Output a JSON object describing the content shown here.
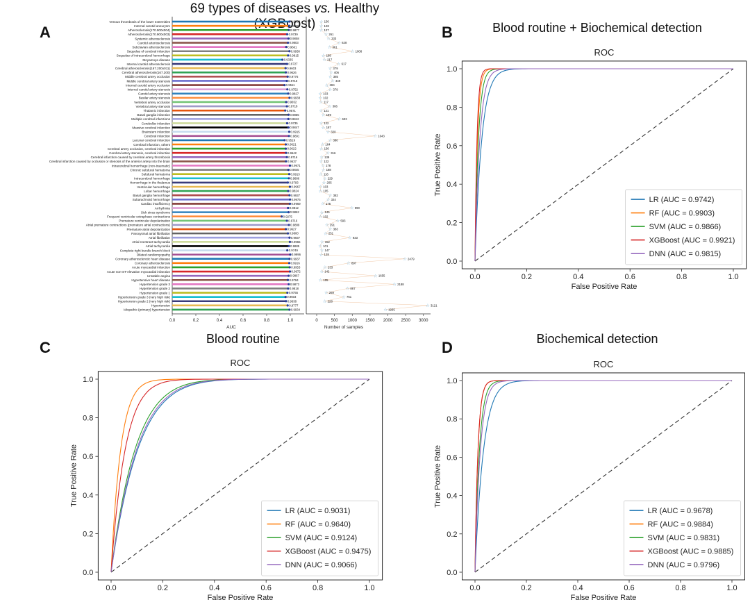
{
  "panel_a": {
    "letter": "A",
    "title_prefix": "69 types of diseases ",
    "title_vs": "vs.",
    "title_suffix": " Healthy (XGBoost)"
  },
  "panel_b": {
    "letter": "B",
    "title": "Blood routine + Biochemical detection"
  },
  "panel_c": {
    "letter": "C",
    "title": "Blood routine"
  },
  "panel_d": {
    "letter": "D",
    "title": "Biochemical detection"
  },
  "chart_data": [
    {
      "id": "A",
      "type": "bar",
      "orientation": "horizontal",
      "xlabel": "AUC",
      "xlabel2": "Number of samples",
      "xlim": [
        0,
        1.0
      ],
      "xticks": [
        "0.0",
        "0.2",
        "0.4",
        "0.6",
        "0.8",
        "1.0"
      ],
      "xlim2": [
        0,
        3200
      ],
      "xticks2": [
        "0",
        "500",
        "1000",
        "1500",
        "2000",
        "2500",
        "3000"
      ],
      "categories": [
        "Venous thrombosis of the lower extremities",
        "Internal carotid aneurysm",
        "Atherosclerosis(170.900x004)",
        "Atherosclerosis(170.900x003)",
        "Systemic atherosclerosis",
        "Carotid arteriosclerosis",
        "Subclavian atherosclerosis",
        "Sequelae of cerebral infarction",
        "Sequelae of intracerebral hemorrhage",
        "Moyamoya disease",
        "Internal carotid atherosclerosis",
        "Cerebral atherosclerosis(167.200x011)",
        "Cerebral atherosclerosis(167.200)",
        "Middle cerebral artery occlusion",
        "Middle cerebral artery stenosis",
        "Internal carotid artery occlusion",
        "Internal carotid artery stenosis",
        "Carotid artery stenosis",
        "Basilar artery stenosis",
        "Vertebral artery occlusion",
        "Vertebral artery stenosis",
        "Thalamic infarction",
        "Basal ganglia infarction",
        "Multiple cerebral infarctions",
        "Cerebellar infarction",
        "Massive cerebral infarction",
        "Brainstem infarction",
        "Cerebral infarction",
        "Lacunar cerebral infarction",
        "Cerebral infarction, others",
        "Cerebral artery occlusion, cerebral infarction",
        "Cerebral artery stenosis, cerebral infarction",
        "Cerebral infarction caused by cerebral artery thrombosis",
        "Cerebral infarction caused by occlusion or stenosis of the anterior artery into the brain",
        "Intracerebral hemorrhage (non-traumatic)",
        "Chronic subdural hematoma",
        "Subdural hematoma",
        "Intracerebral hemorrhage",
        "Hemorrhage in the thalamus",
        "Ventricular hemorrhage",
        "Lobar hemorrhage",
        "Basal ganglia hemorrhage",
        "Subarachnoid hemorrhage",
        "Cardiac insufficiency",
        "Arrhythmia",
        "Sick sinus syndrome",
        "Frequent ventricular extraphase contractions",
        "Premature ventricular depolarization",
        "Atrial premature contractions (premature atrial contractions)",
        "Premature atrial depolarization",
        "Paroxysmal atrial fibrillation",
        "Atrial fibrillation",
        "Atrial reentrant tachycardia",
        "Atrial tachycardia",
        "Complete right bundle branch block",
        "Dilated cardiomyopathy",
        "Coronary atherosclerotic heart disease",
        "Coronary atherosclerosis",
        "Acute myocardial infarction",
        "Acute non-ST-elevation myocardial infarction",
        "Unstable angina",
        "Hypertensive heart disease",
        "Hypertension grade 3",
        "Hypertension grade 2",
        "Hypertension grade 1",
        "Hypertension grade 3 (very high risk)",
        "Hypertension grade 2 (very high risk)",
        "Hypertension",
        "Idiopathic (primary) hypertension"
      ],
      "auc_labels": [
        "0.9939",
        "0.9905",
        "0.9877",
        "0.9739",
        "0.9858",
        "0.9803",
        "0.9661",
        "0.9930",
        "0.9815",
        "0.9335",
        "0.9727",
        "0.9603",
        "0.9626",
        "0.9776",
        "0.9716",
        "0.9511",
        "0.9752",
        "0.9827",
        "0.9938",
        "0.9652",
        "0.9718",
        "0.9571",
        "0.9855",
        "0.9842",
        "0.9735",
        "0.9847",
        "0.9915",
        "0.9891",
        "0.9519",
        "0.9621",
        "0.9622",
        "0.9642",
        "0.9716",
        "0.9637",
        "0.9971",
        "0.9845",
        "0.9913",
        "0.9886",
        "0.9793",
        "0.9967",
        "0.9824",
        "0.9937",
        "0.9975",
        "0.9969",
        "0.9812",
        "0.9862",
        "0.9275",
        "0.9716",
        "0.9889",
        "0.9627",
        "0.9800",
        "0.9937",
        "0.9965",
        "0.9885",
        "0.9749",
        "0.9996",
        "0.9937",
        "0.9916",
        "0.9953",
        "0.9972",
        "0.9867",
        "0.9794",
        "0.9873",
        "0.9818",
        "0.9755",
        "0.9603",
        "0.9638",
        "0.9777",
        "0.9934"
      ],
      "auc_values": [
        0.9939,
        0.9905,
        0.9877,
        0.9739,
        0.9858,
        0.9803,
        0.9661,
        0.993,
        0.9815,
        0.9335,
        0.9727,
        0.9603,
        0.9626,
        0.9776,
        0.9716,
        0.9511,
        0.9752,
        0.9827,
        0.9938,
        0.9652,
        0.9718,
        0.9571,
        0.9855,
        0.9842,
        0.9735,
        0.9847,
        0.9915,
        0.9891,
        0.9519,
        0.9621,
        0.9622,
        0.9642,
        0.9716,
        0.9637,
        0.9971,
        0.9845,
        0.9913,
        0.9886,
        0.9793,
        0.9967,
        0.9824,
        0.9937,
        0.9975,
        0.9969,
        0.9812,
        0.9862,
        0.9275,
        0.9716,
        0.9889,
        0.9627,
        0.98,
        0.9937,
        0.9965,
        0.9885,
        0.9749,
        0.9996,
        0.9937,
        0.9916,
        0.9953,
        0.9972,
        0.9867,
        0.9794,
        0.9873,
        0.9818,
        0.9755,
        0.9603,
        0.9638,
        0.9777,
        0.9934
      ],
      "sample_values": [
        130,
        128,
        127,
        261,
        333,
        628,
        361,
        1008,
        188,
        217,
        617,
        379,
        406,
        385,
        449,
        284,
        379,
        103,
        102,
        117,
        366,
        121,
        189,
        633,
        122,
        187,
        320,
        1643,
        380,
        164,
        130,
        316,
        139,
        122,
        178,
        188,
        116,
        229,
        205,
        103,
        105,
        382,
        324,
        175,
        990,
        145,
        102,
        593,
        291,
        383,
        251,
        933,
        152,
        101,
        147,
        128,
        2479,
        897,
        233,
        142,
        1655,
        105,
        2188,
        867,
        269,
        761,
        228,
        3121,
        1935
      ],
      "sample_labels": [
        "130",
        "128",
        "127",
        "261",
        "333",
        "628",
        "361",
        "1008",
        "188",
        "217",
        "617",
        "379",
        "406",
        "385",
        "449",
        "284",
        "379",
        "103",
        "102",
        "117",
        "366",
        "121",
        "189",
        "633",
        "122",
        "187",
        "320",
        "1643",
        "380",
        "164",
        "130",
        "316",
        "139",
        "122",
        "178",
        "188",
        "116",
        "229",
        "205",
        "103",
        "105",
        "382",
        "324",
        "175",
        "990",
        "145",
        "102",
        "593",
        "291",
        "383",
        "251",
        "933",
        "152",
        "101",
        "147",
        "128",
        "2479",
        "897",
        "233",
        "142",
        "1655",
        "105",
        "2188",
        "867",
        "269",
        "761",
        "228",
        "3121",
        "1935"
      ]
    },
    {
      "id": "B",
      "type": "line",
      "title": "ROC",
      "xlabel": "False Positive Rate",
      "ylabel": "True Positive Rate",
      "xlim": [
        0,
        1
      ],
      "ylim": [
        0,
        1
      ],
      "ticks": [
        "0.0",
        "0.2",
        "0.4",
        "0.6",
        "0.8",
        "1.0"
      ],
      "legend_position": "lower right",
      "series": [
        {
          "name": "LR (AUC = 0.9742)",
          "color": "#1f77b4",
          "auc": 0.9742
        },
        {
          "name": "RF (AUC = 0.9903)",
          "color": "#ff7f0e",
          "auc": 0.9903
        },
        {
          "name": "SVM (AUC = 0.9866)",
          "color": "#2ca02c",
          "auc": 0.9866
        },
        {
          "name": "XGBoost (AUC = 0.9921)",
          "color": "#d62728",
          "auc": 0.9921
        },
        {
          "name": "DNN (AUC = 0.9815)",
          "color": "#9467bd",
          "auc": 0.9815
        }
      ]
    },
    {
      "id": "C",
      "type": "line",
      "title": "ROC",
      "xlabel": "False Positive Rate",
      "ylabel": "True Positive Rate",
      "xlim": [
        0,
        1
      ],
      "ylim": [
        0,
        1
      ],
      "ticks": [
        "0.0",
        "0.2",
        "0.4",
        "0.6",
        "0.8",
        "1.0"
      ],
      "legend_position": "lower right",
      "series": [
        {
          "name": "LR (AUC = 0.9031)",
          "color": "#1f77b4",
          "auc": 0.9031
        },
        {
          "name": "RF (AUC = 0.9640)",
          "color": "#ff7f0e",
          "auc": 0.964
        },
        {
          "name": "SVM (AUC = 0.9124)",
          "color": "#2ca02c",
          "auc": 0.9124
        },
        {
          "name": "XGBoost (AUC = 0.9475)",
          "color": "#d62728",
          "auc": 0.9475
        },
        {
          "name": "DNN (AUC = 0.9066)",
          "color": "#9467bd",
          "auc": 0.9066
        }
      ]
    },
    {
      "id": "D",
      "type": "line",
      "title": "ROC",
      "xlabel": "False Positive Rate",
      "ylabel": "True Positive Rate",
      "xlim": [
        0,
        1
      ],
      "ylim": [
        0,
        1
      ],
      "ticks": [
        "0.0",
        "0.2",
        "0.4",
        "0.6",
        "0.8",
        "1.0"
      ],
      "legend_position": "lower right",
      "series": [
        {
          "name": "LR (AUC = 0.9678)",
          "color": "#1f77b4",
          "auc": 0.9678
        },
        {
          "name": "RF (AUC = 0.9884)",
          "color": "#ff7f0e",
          "auc": 0.9884
        },
        {
          "name": "SVM (AUC = 0.9831)",
          "color": "#2ca02c",
          "auc": 0.9831
        },
        {
          "name": "XGBoost (AUC = 0.9885)",
          "color": "#d62728",
          "auc": 0.9885
        },
        {
          "name": "DNN (AUC = 0.9796)",
          "color": "#9467bd",
          "auc": 0.9796
        }
      ]
    }
  ]
}
